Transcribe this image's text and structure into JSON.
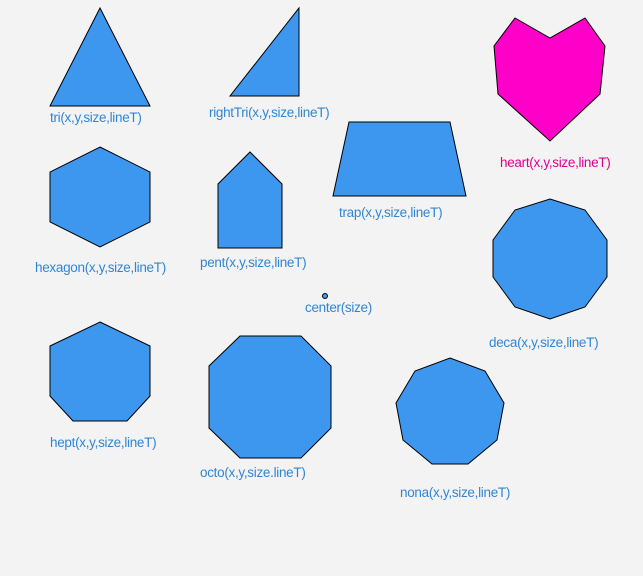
{
  "colors": {
    "shape_fill": "#3d97ee",
    "heart_fill": "#ff00c8",
    "label_blue": "#2f86d6",
    "label_magenta": "#e0008f",
    "outline": "#000000",
    "background": "#f3f3f3"
  },
  "labels": {
    "tri": "tri(x,y,size,lineT)",
    "right_tri": "rightTri(x,y,size,lineT)",
    "heart": "heart(x,y,size,lineT)",
    "trap": "trap(x,y,size,lineT)",
    "hexagon": "hexagon(x,y,size,lineT)",
    "pent": "pent(x,y,size,lineT)",
    "center": "center(size)",
    "deca": "deca(x,y,size,lineT)",
    "hept": "hept(x,y,size,lineT)",
    "octo": "octo(x,y,size.lineT)",
    "nona": "nona(x,y,size,lineT)"
  }
}
